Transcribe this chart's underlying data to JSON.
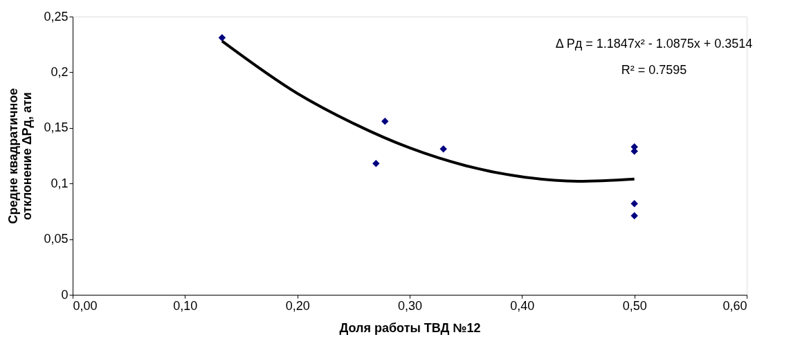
{
  "chart_data": {
    "type": "scatter",
    "xlabel": "Доля работы ТВД №12",
    "ylabel": "Средне квадратичное отклонение ΔPд, ати",
    "annotations": [
      "Δ Pд = 1.1847x² - 1.0875x + 0.3514",
      "R² = 0.7595"
    ],
    "series": [
      {
        "color": "#000080",
        "marker": "diamond",
        "x": [
          0.133,
          0.27,
          0.278,
          0.33,
          0.5,
          0.5,
          0.5,
          0.5
        ],
        "values": [
          0.231,
          0.118,
          0.156,
          0.131,
          0.133,
          0.129,
          0.082,
          0.071
        ]
      },
      {
        "type": "line",
        "color": "#000000",
        "line_style": "solid",
        "x": [
          0.133,
          0.2,
          0.25,
          0.3,
          0.35,
          0.4,
          0.45,
          0.5
        ],
        "values": [
          0.228,
          0.181,
          0.154,
          0.132,
          0.116,
          0.106,
          0.102,
          0.104
        ]
      }
    ],
    "xlim": [
      0,
      0.6
    ],
    "ylim": [
      0,
      0.25
    ],
    "xticks": [
      {
        "value": 0,
        "label": "0,00"
      },
      {
        "value": 0.1,
        "label": "0,10"
      },
      {
        "value": 0.2,
        "label": "0,20"
      },
      {
        "value": 0.3,
        "label": "0,30"
      },
      {
        "value": 0.4,
        "label": "0,40"
      },
      {
        "value": 0.5,
        "label": "0,50"
      },
      {
        "value": 0.6,
        "label": "0,60"
      }
    ],
    "yticks": [
      0,
      {
        "value": 0.05,
        "label": "0,05"
      },
      {
        "value": 0.1,
        "label": "0,1"
      },
      {
        "value": 0.15,
        "label": "0,15"
      },
      {
        "value": 0.2,
        "label": "0,2"
      },
      {
        "value": 0.25,
        "label": "0,25"
      }
    ],
    "grid": false,
    "legend": false
  }
}
